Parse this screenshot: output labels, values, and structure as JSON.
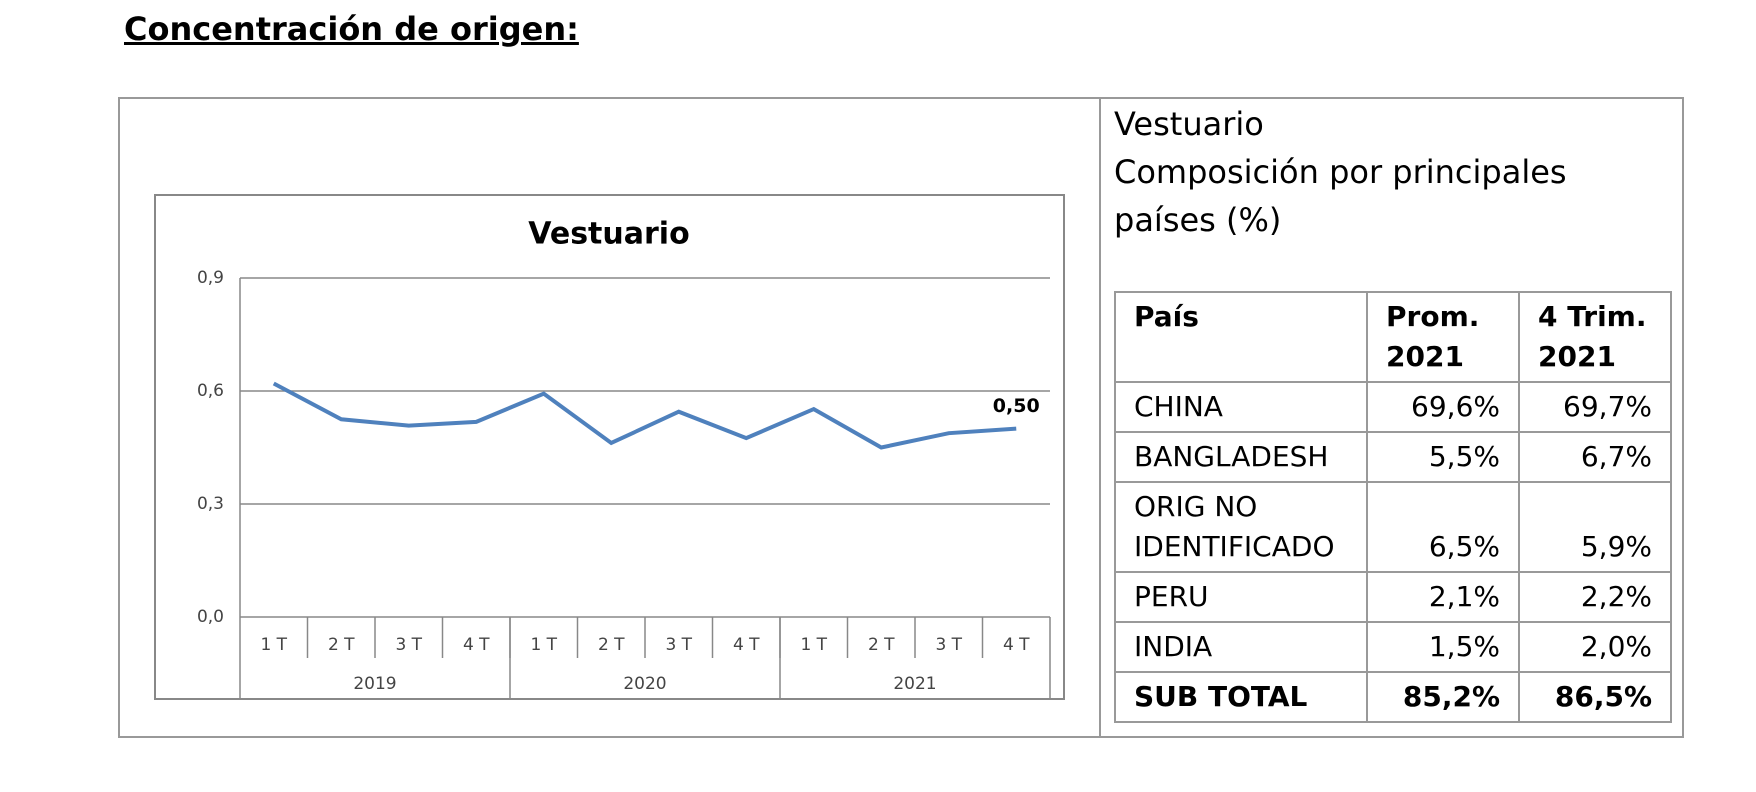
{
  "title": "Concentración de origen:",
  "chart_data": {
    "type": "line",
    "title": "Vestuario",
    "categories": [
      "1 T",
      "2 T",
      "3 T",
      "4 T",
      "1 T",
      "2 T",
      "3 T",
      "4 T",
      "1 T",
      "2 T",
      "3 T",
      "4 T"
    ],
    "x_groups": [
      "2019",
      "2020",
      "2021"
    ],
    "series": [
      {
        "color": "#4f81bd",
        "values": [
          0.62,
          0.525,
          0.508,
          0.518,
          0.593,
          0.462,
          0.545,
          0.475,
          0.552,
          0.45,
          0.488,
          0.5
        ],
        "value_labels": [
          null,
          null,
          null,
          null,
          null,
          null,
          null,
          null,
          null,
          null,
          null,
          "0,50"
        ]
      }
    ],
    "ylim": [
      0,
      0.9
    ],
    "yticks": [
      {
        "value": 0,
        "label": "0,0"
      },
      {
        "value": 0.3,
        "label": "0,3"
      },
      {
        "value": 0.6,
        "label": "0,6"
      },
      {
        "value": 0.9,
        "label": "0,9"
      }
    ],
    "grid": true
  },
  "table": {
    "title_lines": [
      "Vestuario",
      "Composición por principales",
      "países (%)"
    ],
    "header": [
      "País",
      "Prom. 2021",
      "4 Trim. 2021"
    ],
    "rows": [
      [
        "CHINA",
        "69,6%",
        "69,7%"
      ],
      [
        "BANGLADESH",
        "5,5%",
        "6,7%"
      ],
      [
        "ORIG NO IDENTIFICADO",
        "6,5%",
        "5,9%"
      ],
      [
        "PERU",
        "2,1%",
        "2,2%"
      ],
      [
        "INDIA",
        "1,5%",
        "2,0%"
      ]
    ],
    "total": [
      "SUB TOTAL",
      "85,2%",
      "86,5%"
    ]
  }
}
